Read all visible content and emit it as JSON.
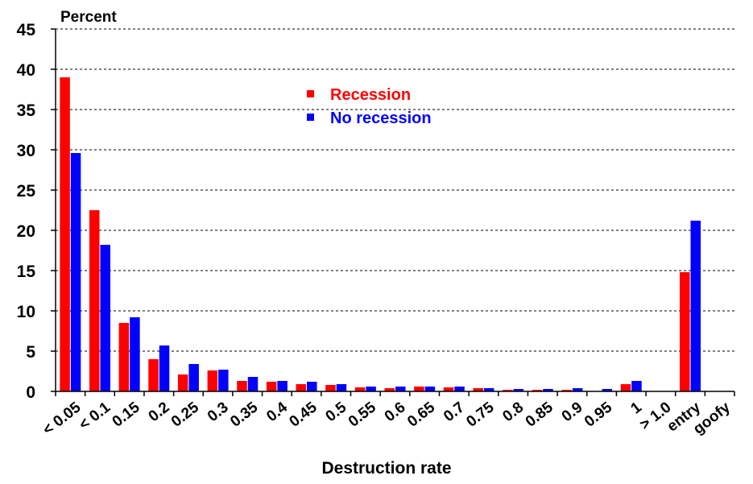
{
  "chart_data": {
    "type": "bar",
    "title": "",
    "ylabel": "Percent",
    "xlabel": "Destruction rate",
    "ylim": [
      0,
      45
    ],
    "yticks": [
      0,
      5,
      10,
      15,
      20,
      25,
      30,
      35,
      40,
      45
    ],
    "grid": true,
    "legend_position": "top-center",
    "categories": [
      "< 0.05",
      "< 0.1",
      "0.15",
      "0.2",
      "0.25",
      "0.3",
      "0.35",
      "0.4",
      "0.45",
      "0.5",
      "0.55",
      "0.6",
      "0.65",
      "0.7",
      "0.75",
      "0.8",
      "0.85",
      "0.9",
      "0.95",
      "1",
      "> 1.0",
      "entry",
      "goofy"
    ],
    "series": [
      {
        "name": "Recession",
        "color": "#ff0000",
        "values": [
          39.0,
          22.5,
          8.5,
          4.0,
          2.1,
          2.6,
          1.3,
          1.2,
          0.9,
          0.8,
          0.5,
          0.4,
          0.6,
          0.5,
          0.4,
          0.2,
          0.2,
          0.2,
          0.0,
          0.9,
          0.0,
          14.8,
          0.0
        ]
      },
      {
        "name": "No recession",
        "color": "#0000ff",
        "values": [
          29.6,
          18.2,
          9.2,
          5.7,
          3.4,
          2.7,
          1.8,
          1.3,
          1.2,
          0.9,
          0.6,
          0.6,
          0.6,
          0.6,
          0.4,
          0.3,
          0.3,
          0.4,
          0.3,
          1.3,
          0.0,
          21.2,
          0.0
        ]
      }
    ]
  }
}
